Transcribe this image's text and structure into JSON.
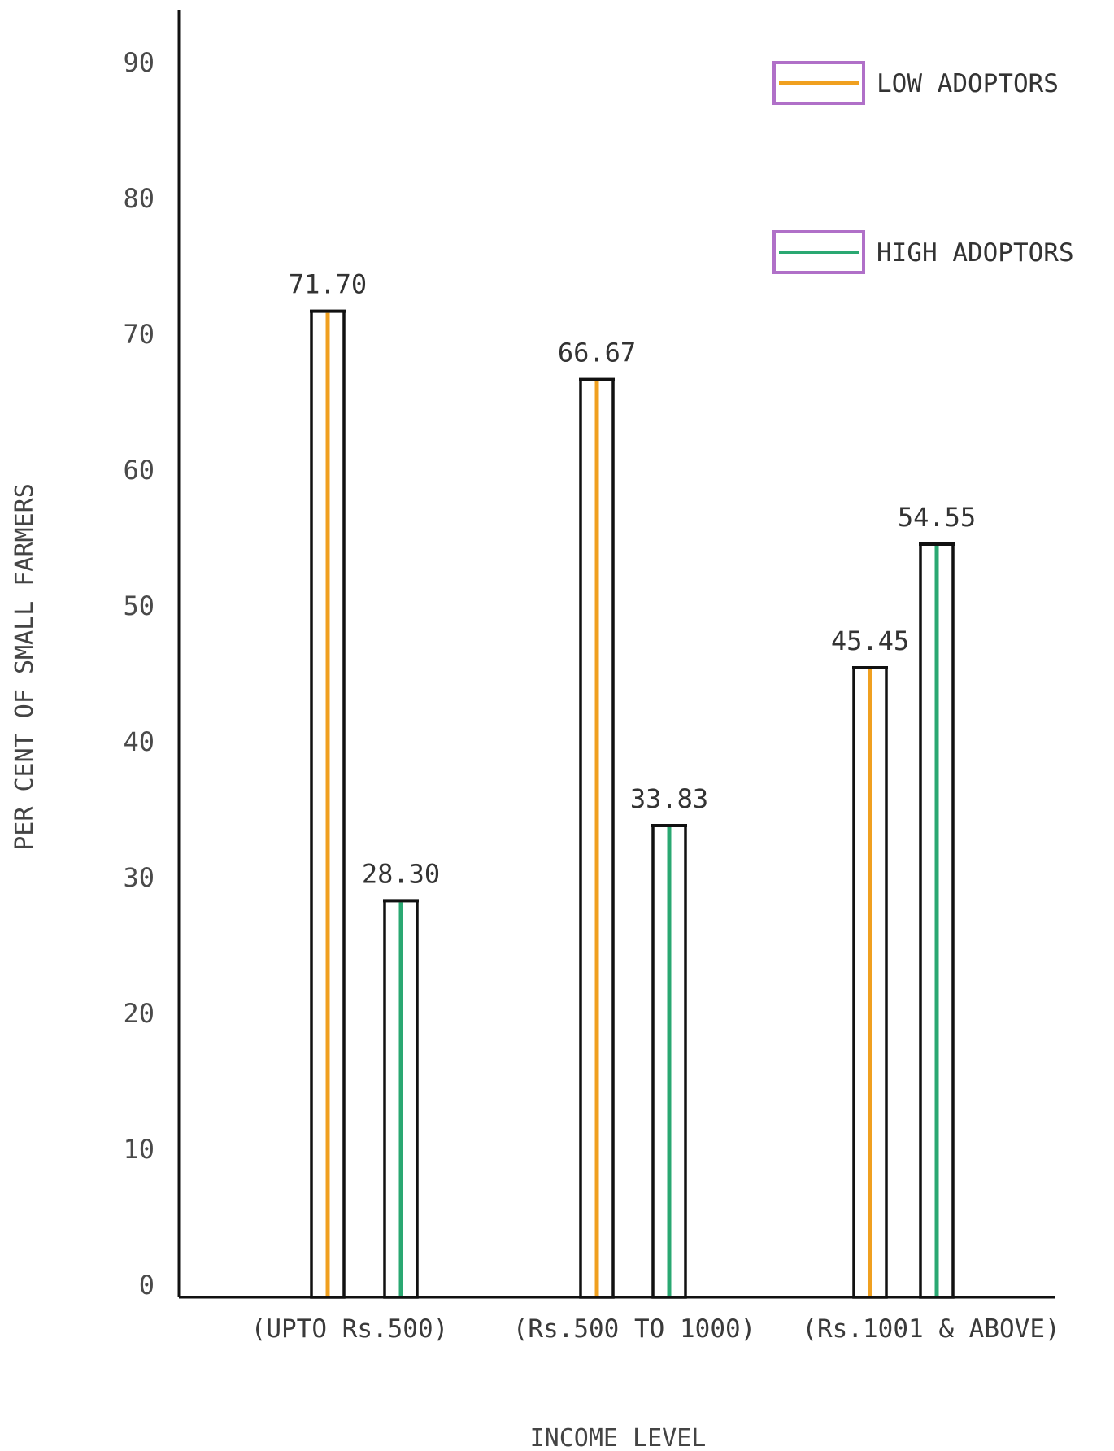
{
  "chart_data": {
    "type": "bar",
    "title": "",
    "xlabel": "INCOME LEVEL",
    "ylabel": "PER CENT OF SMALL FARMERS",
    "ylim": [
      0,
      90
    ],
    "yticks": [
      0,
      10,
      20,
      30,
      40,
      50,
      60,
      70,
      80,
      90
    ],
    "ytick_labels": [
      "0",
      "10",
      "20",
      "30",
      "40",
      "50",
      "60",
      "70",
      "80",
      "90"
    ],
    "categories": [
      "(UPTO Rs.500)",
      "(Rs.500 TO 1000)",
      "(Rs.1001 & ABOVE)"
    ],
    "series": [
      {
        "name": "LOW ADOPTORS",
        "values": [
          71.7,
          66.67,
          45.45
        ],
        "labels": [
          "71.70",
          "66.67",
          "45.45"
        ],
        "color": "#f0a020"
      },
      {
        "name": "HIGH ADOPTORS",
        "values": [
          28.3,
          33.83,
          54.55
        ],
        "labels": [
          "28.30",
          "33.83",
          "54.55"
        ],
        "color": "#2aa872"
      }
    ],
    "legend_position": "top-right",
    "legend_border_color": "#b070c8",
    "grid": false
  }
}
